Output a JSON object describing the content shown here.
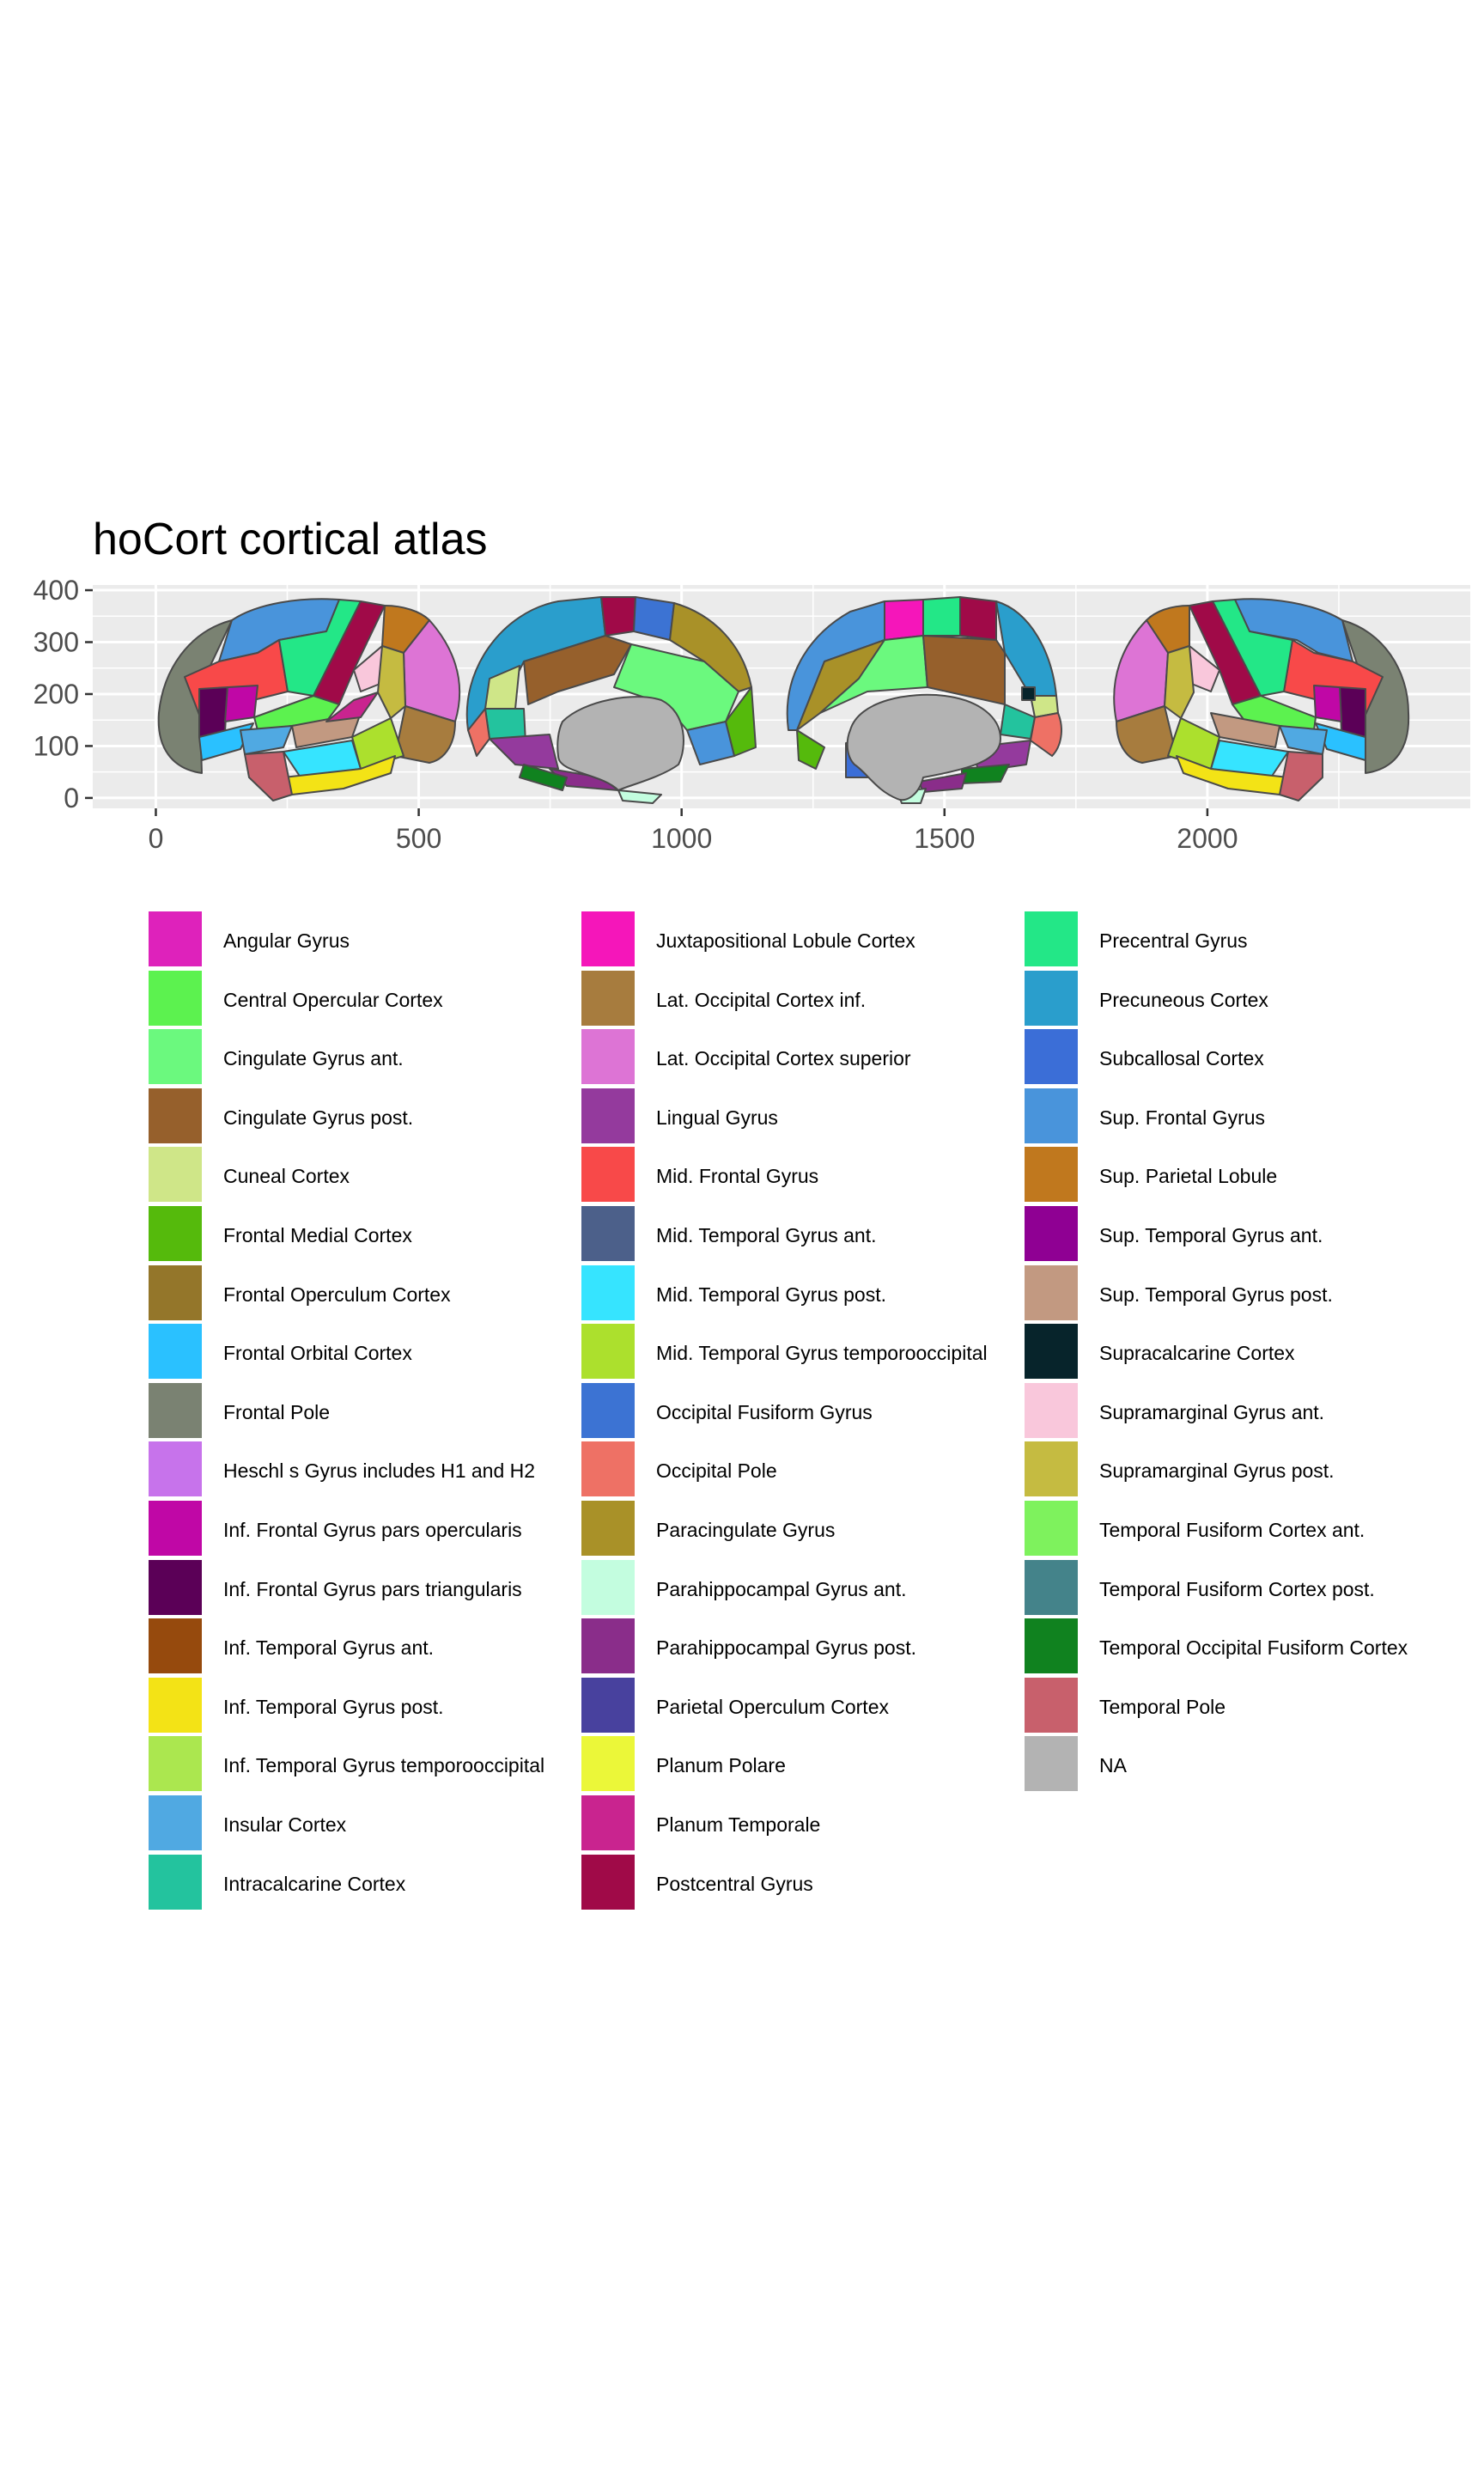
{
  "chart_data": {
    "type": "other",
    "title": "hoCort cortical atlas",
    "x_ticks": [
      0,
      500,
      1000,
      1500,
      2000
    ],
    "y_ticks": [
      0,
      100,
      200,
      300,
      400
    ],
    "xlim": [
      -120,
      2500
    ],
    "ylim": [
      -20,
      410
    ],
    "views": [
      "lateral left",
      "medial left",
      "medial right",
      "lateral right"
    ],
    "legend": [
      {
        "label": "Angular Gyrus",
        "color": "#DE22BB"
      },
      {
        "label": "Central Opercular Cortex",
        "color": "#5CF24F"
      },
      {
        "label": "Cingulate Gyrus ant.",
        "color": "#6BF97E"
      },
      {
        "label": "Cingulate Gyrus post.",
        "color": "#96602C"
      },
      {
        "label": "Cuneal Cortex",
        "color": "#CFE688"
      },
      {
        "label": "Frontal Medial Cortex",
        "color": "#55BA0C"
      },
      {
        "label": "Frontal Operculum Cortex",
        "color": "#94762A"
      },
      {
        "label": "Frontal Orbital Cortex",
        "color": "#2AC1FF"
      },
      {
        "label": "Frontal Pole",
        "color": "#7A8272"
      },
      {
        "label": "Heschl s Gyrus includes H1 and H2",
        "color": "#C773EB"
      },
      {
        "label": "Inf. Frontal Gyrus pars opercularis",
        "color": "#C007A6"
      },
      {
        "label": "Inf. Frontal Gyrus pars triangularis",
        "color": "#5B0057"
      },
      {
        "label": "Inf. Temporal Gyrus ant.",
        "color": "#964A0D"
      },
      {
        "label": "Inf. Temporal Gyrus post.",
        "color": "#F3E316"
      },
      {
        "label": "Inf. Temporal Gyrus temporooccipital",
        "color": "#ABE74F"
      },
      {
        "label": "Insular Cortex",
        "color": "#50A9E2"
      },
      {
        "label": "Intracalcarine Cortex",
        "color": "#23C39E"
      },
      {
        "label": "Juxtapositional Lobule Cortex",
        "color": "#F516BA"
      },
      {
        "label": "Lat. Occipital Cortex inf.",
        "color": "#A77C3E"
      },
      {
        "label": "Lat. Occipital Cortex superior",
        "color": "#DD74D5"
      },
      {
        "label": "Lingual Gyrus",
        "color": "#943A9D"
      },
      {
        "label": "Mid. Frontal Gyrus",
        "color": "#F84949"
      },
      {
        "label": "Mid. Temporal Gyrus ant.",
        "color": "#4C608A"
      },
      {
        "label": "Mid. Temporal Gyrus post.",
        "color": "#36E4FF"
      },
      {
        "label": "Mid. Temporal Gyrus temporooccipital",
        "color": "#ACE02D"
      },
      {
        "label": "Occipital Fusiform Gyrus",
        "color": "#3C73D3"
      },
      {
        "label": "Occipital Pole",
        "color": "#EE7165"
      },
      {
        "label": "Paracingulate Gyrus",
        "color": "#A99128"
      },
      {
        "label": "Parahippocampal Gyrus ant.",
        "color": "#C3FDDF"
      },
      {
        "label": "Parahippocampal Gyrus post.",
        "color": "#8A2D8A"
      },
      {
        "label": "Parietal Operculum Cortex",
        "color": "#48419E"
      },
      {
        "label": "Planum Polare",
        "color": "#EBF739"
      },
      {
        "label": "Planum Temporale",
        "color": "#C9248F"
      },
      {
        "label": "Postcentral Gyrus",
        "color": "#A00A48"
      },
      {
        "label": "Precentral Gyrus",
        "color": "#23E787"
      },
      {
        "label": "Precuneous Cortex",
        "color": "#2A9ECC"
      },
      {
        "label": "Subcallosal Cortex",
        "color": "#3B6ED7"
      },
      {
        "label": "Sup. Frontal Gyrus",
        "color": "#4994DB"
      },
      {
        "label": "Sup. Parietal Lobule",
        "color": "#C0781E"
      },
      {
        "label": "Sup. Temporal Gyrus ant.",
        "color": "#8F0093"
      },
      {
        "label": "Sup. Temporal Gyrus post.",
        "color": "#C29981"
      },
      {
        "label": "Supracalcarine Cortex",
        "color": "#07242B"
      },
      {
        "label": "Supramarginal Gyrus ant.",
        "color": "#F9C7DB"
      },
      {
        "label": "Supramarginal Gyrus post.",
        "color": "#C5BB41"
      },
      {
        "label": "Temporal Fusiform Cortex ant.",
        "color": "#7EF25D"
      },
      {
        "label": "Temporal Fusiform Cortex post.",
        "color": "#44838A"
      },
      {
        "label": "Temporal Occipital Fusiform Cortex",
        "color": "#10821F"
      },
      {
        "label": "Temporal Pole",
        "color": "#C8606C"
      },
      {
        "label": "NA",
        "color": "#B3B3B3"
      }
    ]
  }
}
